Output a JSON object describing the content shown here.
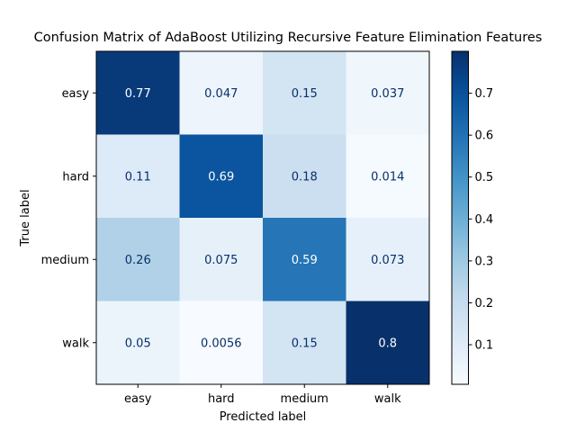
{
  "chart_data": {
    "type": "heatmap",
    "title": "Confusion Matrix of AdaBoost Utilizing Recursive Feature Elimination Features",
    "xlabel": "Predicted label",
    "ylabel": "True label",
    "x_categories": [
      "easy",
      "hard",
      "medium",
      "walk"
    ],
    "y_categories": [
      "easy",
      "hard",
      "medium",
      "walk"
    ],
    "values": [
      [
        0.77,
        0.047,
        0.15,
        0.037
      ],
      [
        0.11,
        0.69,
        0.18,
        0.014
      ],
      [
        0.26,
        0.075,
        0.59,
        0.073
      ],
      [
        0.05,
        0.0056,
        0.15,
        0.8
      ]
    ],
    "labels": [
      [
        "0.77",
        "0.047",
        "0.15",
        "0.037"
      ],
      [
        "0.11",
        "0.69",
        "0.18",
        "0.014"
      ],
      [
        "0.26",
        "0.075",
        "0.59",
        "0.073"
      ],
      [
        "0.05",
        "0.0056",
        "0.15",
        "0.8"
      ]
    ],
    "colormap": "Blues",
    "colorbar": {
      "range": [
        0.0056,
        0.8
      ],
      "ticks": [
        0.1,
        0.2,
        0.3,
        0.4,
        0.5,
        0.6,
        0.7
      ],
      "tick_labels": [
        "0.1",
        "0.2",
        "0.3",
        "0.4",
        "0.5",
        "0.6",
        "0.7"
      ]
    },
    "text_color_light": "#ffffff",
    "text_color_dark": "#08306b"
  }
}
